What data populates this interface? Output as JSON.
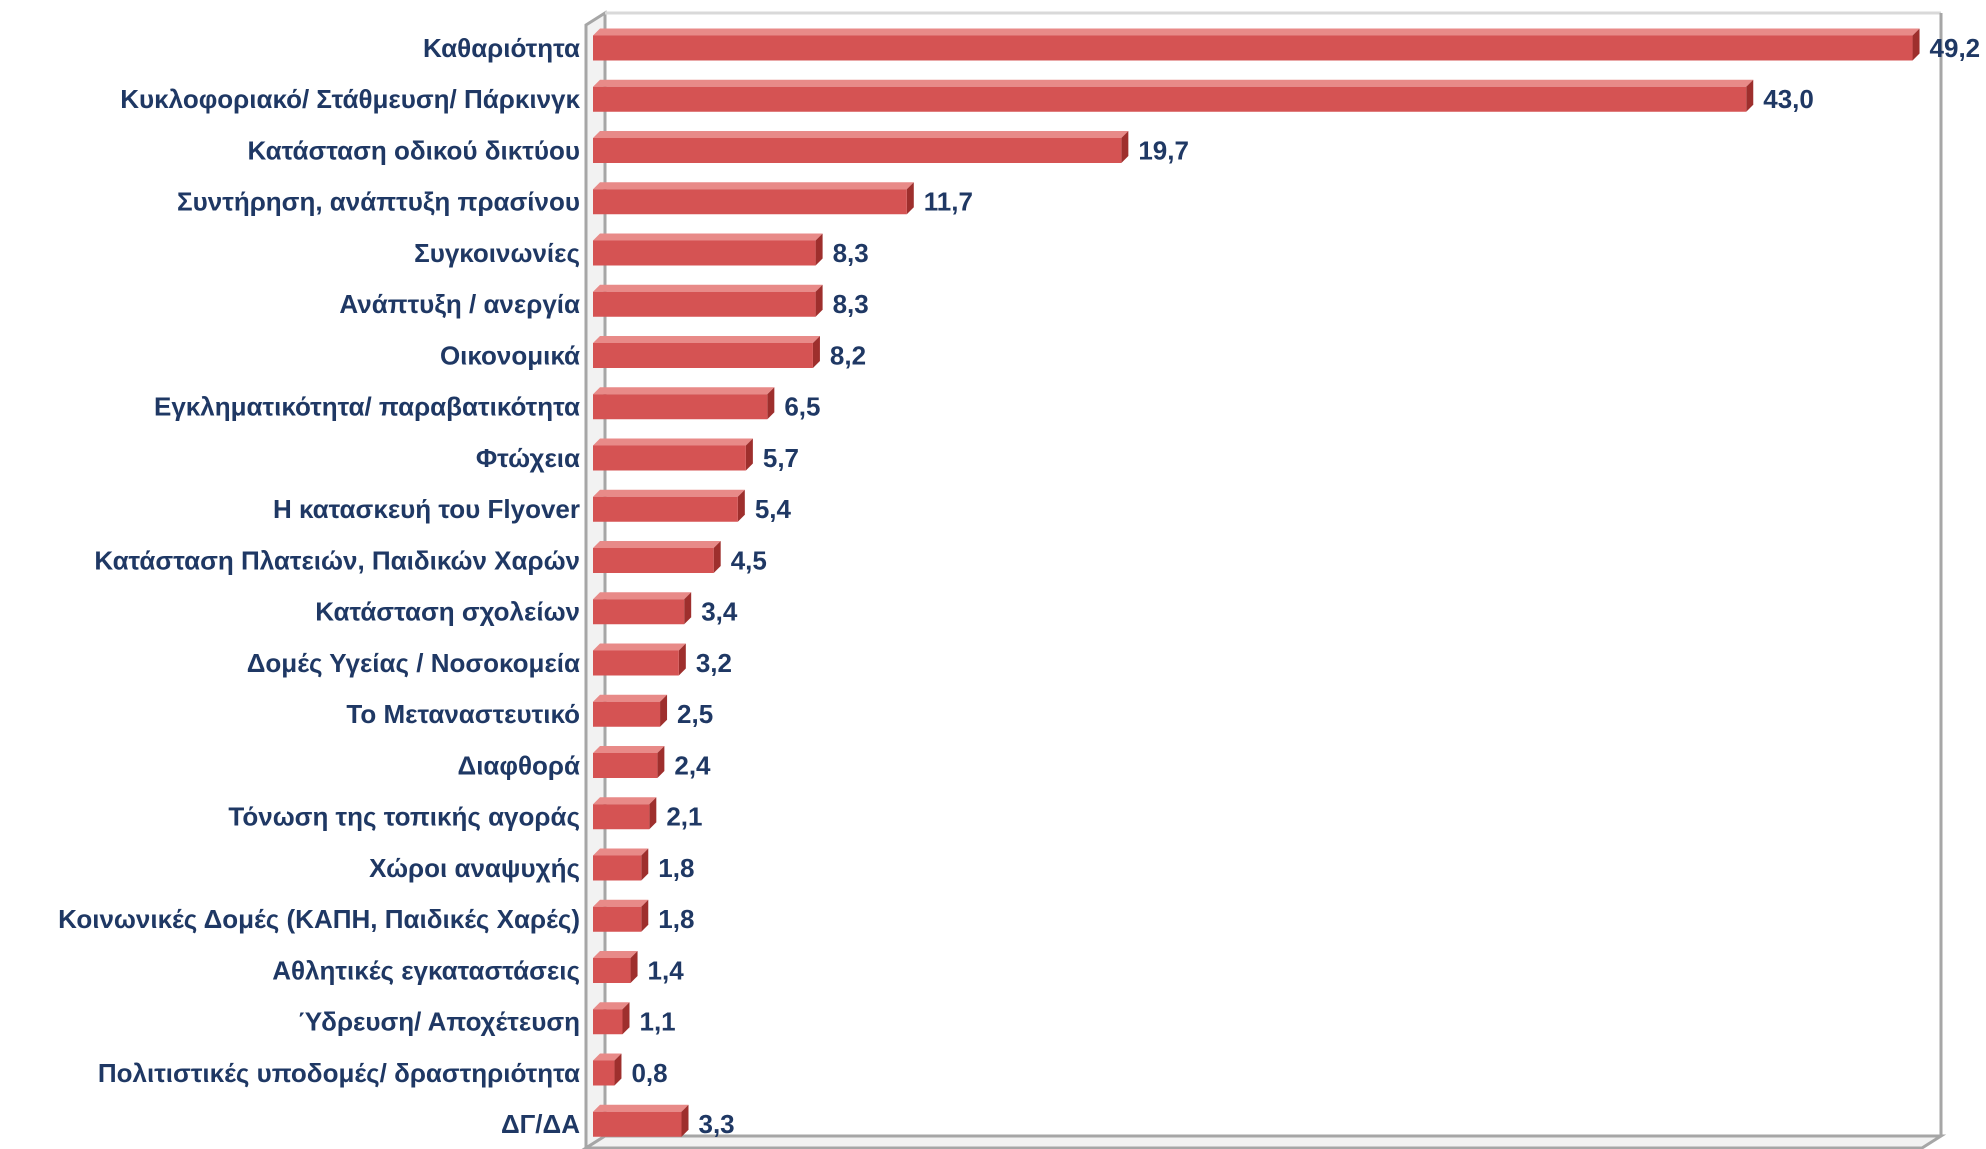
{
  "chart_data": {
    "type": "bar",
    "orientation": "horizontal",
    "color": "#d55353",
    "categories": [
      "Καθαριότητα",
      "Κυκλοφοριακό/ Στάθμευση/ Πάρκινγκ",
      "Κατάσταση οδικού δικτύου",
      "Συντήρηση, ανάπτυξη πρασίνου",
      "Συγκοινωνίες",
      "Ανάπτυξη / ανεργία",
      "Οικονομικά",
      "Εγκληματικότητα/ παραβατικότητα",
      "Φτώχεια",
      "Η κατασκευή του Flyover",
      "Κατάσταση Πλατειών, Παιδικών Χαρών",
      "Κατάσταση σχολείων",
      "Δομές Υγείας / Νοσοκομεία",
      "Το Μεταναστευτικό",
      "Διαφθορά",
      "Τόνωση της τοπικής αγοράς",
      "Χώροι αναψυχής",
      "Κοινωνικές Δομές (ΚΑΠΗ, Παιδικές Χαρές)",
      "Αθλητικές εγκαταστάσεις",
      "Ύδρευση/ Αποχέτευση",
      "Πολιτιστικές υποδομές/ δραστηριότητα",
      "ΔΓ/ΔΑ"
    ],
    "values": [
      49.2,
      43.0,
      19.7,
      11.7,
      8.3,
      8.3,
      8.2,
      6.5,
      5.7,
      5.4,
      4.5,
      3.4,
      3.2,
      2.5,
      2.4,
      2.1,
      1.8,
      1.8,
      1.4,
      1.1,
      0.8,
      3.3
    ],
    "value_labels": [
      "49,2",
      "43,0",
      "19,7",
      "11,7",
      "8,3",
      "8,3",
      "8,2",
      "6,5",
      "5,7",
      "5,4",
      "4,5",
      "3,4",
      "3,2",
      "2,5",
      "2,4",
      "2,1",
      "1,8",
      "1,8",
      "1,4",
      "1,1",
      "0,8",
      "3,3"
    ],
    "xlim": [
      0,
      50
    ]
  }
}
